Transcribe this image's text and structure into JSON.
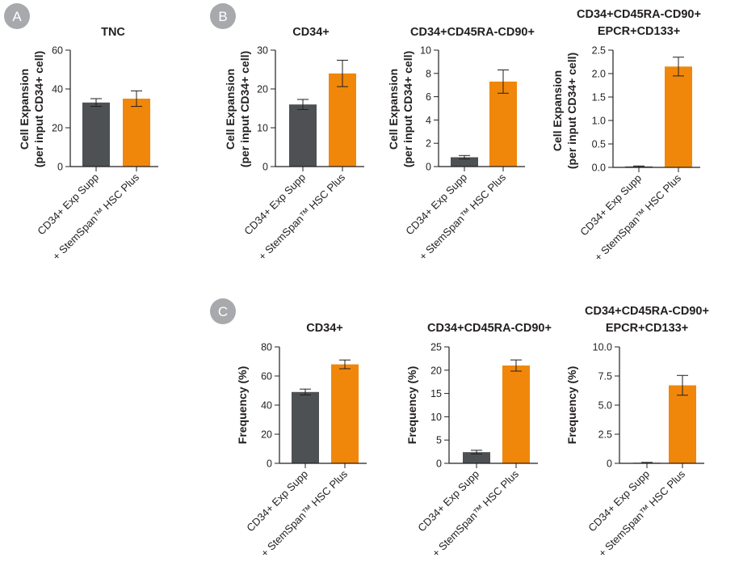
{
  "figure": {
    "panel_labels": [
      "A",
      "B",
      "C"
    ],
    "colors": {
      "control": "#4d5154",
      "treated": "#f0870a",
      "badge": "#a7a9ac",
      "axis": "#231f20"
    }
  },
  "chart_data": [
    {
      "type": "bar",
      "panel": "A",
      "title": [
        "TNC"
      ],
      "ylabel": [
        "Cell Expansion",
        "(per input CD34+ cell)"
      ],
      "categories": [
        "CD34+ Exp Supp",
        "+ StemSpan™ HSC Plus"
      ],
      "values": [
        33,
        35
      ],
      "errors": [
        2,
        4
      ],
      "ylim": [
        0,
        60
      ],
      "yticks": [
        "0",
        "20",
        "40",
        "60"
      ]
    },
    {
      "type": "bar",
      "panel": "B",
      "title": [
        "CD34+"
      ],
      "ylabel": [
        "Cell Expansion",
        "(per input CD34+ cell)"
      ],
      "categories": [
        "CD34+ Exp Supp",
        "+ StemSpan™ HSC Plus"
      ],
      "values": [
        16,
        24
      ],
      "errors": [
        1.3,
        3.4
      ],
      "ylim": [
        0,
        30
      ],
      "yticks": [
        "0",
        "10",
        "20",
        "30"
      ]
    },
    {
      "type": "bar",
      "panel": "B",
      "title": [
        "CD34+CD45RA-CD90+"
      ],
      "ylabel": [
        "Cell Expansion",
        "(per input CD34+ cell)"
      ],
      "categories": [
        "CD34+ Exp Supp",
        "+ StemSpan™ HSC Plus"
      ],
      "values": [
        0.8,
        7.3
      ],
      "errors": [
        0.15,
        1.0
      ],
      "ylim": [
        0,
        10
      ],
      "yticks": [
        "0",
        "2",
        "4",
        "6",
        "8",
        "10"
      ]
    },
    {
      "type": "bar",
      "panel": "B",
      "title": [
        "CD34+CD45RA-CD90+",
        "EPCR+CD133+"
      ],
      "ylabel": [
        "Cell Expansion",
        "(per input CD34+ cell)"
      ],
      "categories": [
        "CD34+ Exp Supp",
        "+ StemSpan™ HSC Plus"
      ],
      "values": [
        0.02,
        2.15
      ],
      "errors": [
        0.01,
        0.2
      ],
      "ylim": [
        0,
        2.5
      ],
      "yticks": [
        "0.0",
        "0.5",
        "1.0",
        "1.5",
        "2.0",
        "2.5"
      ]
    },
    {
      "type": "bar",
      "panel": "C",
      "title": [
        "CD34+"
      ],
      "ylabel": [
        "Frequency (%)"
      ],
      "categories": [
        "CD34+ Exp Supp",
        "+ StemSpan™ HSC Plus"
      ],
      "values": [
        49,
        68
      ],
      "errors": [
        2,
        3
      ],
      "ylim": [
        0,
        80
      ],
      "yticks": [
        "0",
        "20",
        "40",
        "60",
        "80"
      ]
    },
    {
      "type": "bar",
      "panel": "C",
      "title": [
        "CD34+CD45RA-CD90+"
      ],
      "ylabel": [
        "Frequency (%)"
      ],
      "categories": [
        "CD34+ Exp Supp",
        "+ StemSpan™ HSC Plus"
      ],
      "values": [
        2.4,
        21
      ],
      "errors": [
        0.4,
        1.2
      ],
      "ylim": [
        0,
        25
      ],
      "yticks": [
        "0",
        "5",
        "10",
        "15",
        "20",
        "25"
      ]
    },
    {
      "type": "bar",
      "panel": "C",
      "title": [
        "CD34+CD45RA-CD90+",
        "EPCR+CD133+"
      ],
      "ylabel": [
        "Frequency (%)"
      ],
      "categories": [
        "CD34+ Exp Supp",
        "+ StemSpan™ HSC Plus"
      ],
      "values": [
        0.05,
        6.7
      ],
      "errors": [
        0.03,
        0.85
      ],
      "ylim": [
        0,
        10
      ],
      "yticks": [
        "0",
        "2.5",
        "5.0",
        "7.5",
        "10.0"
      ]
    }
  ]
}
